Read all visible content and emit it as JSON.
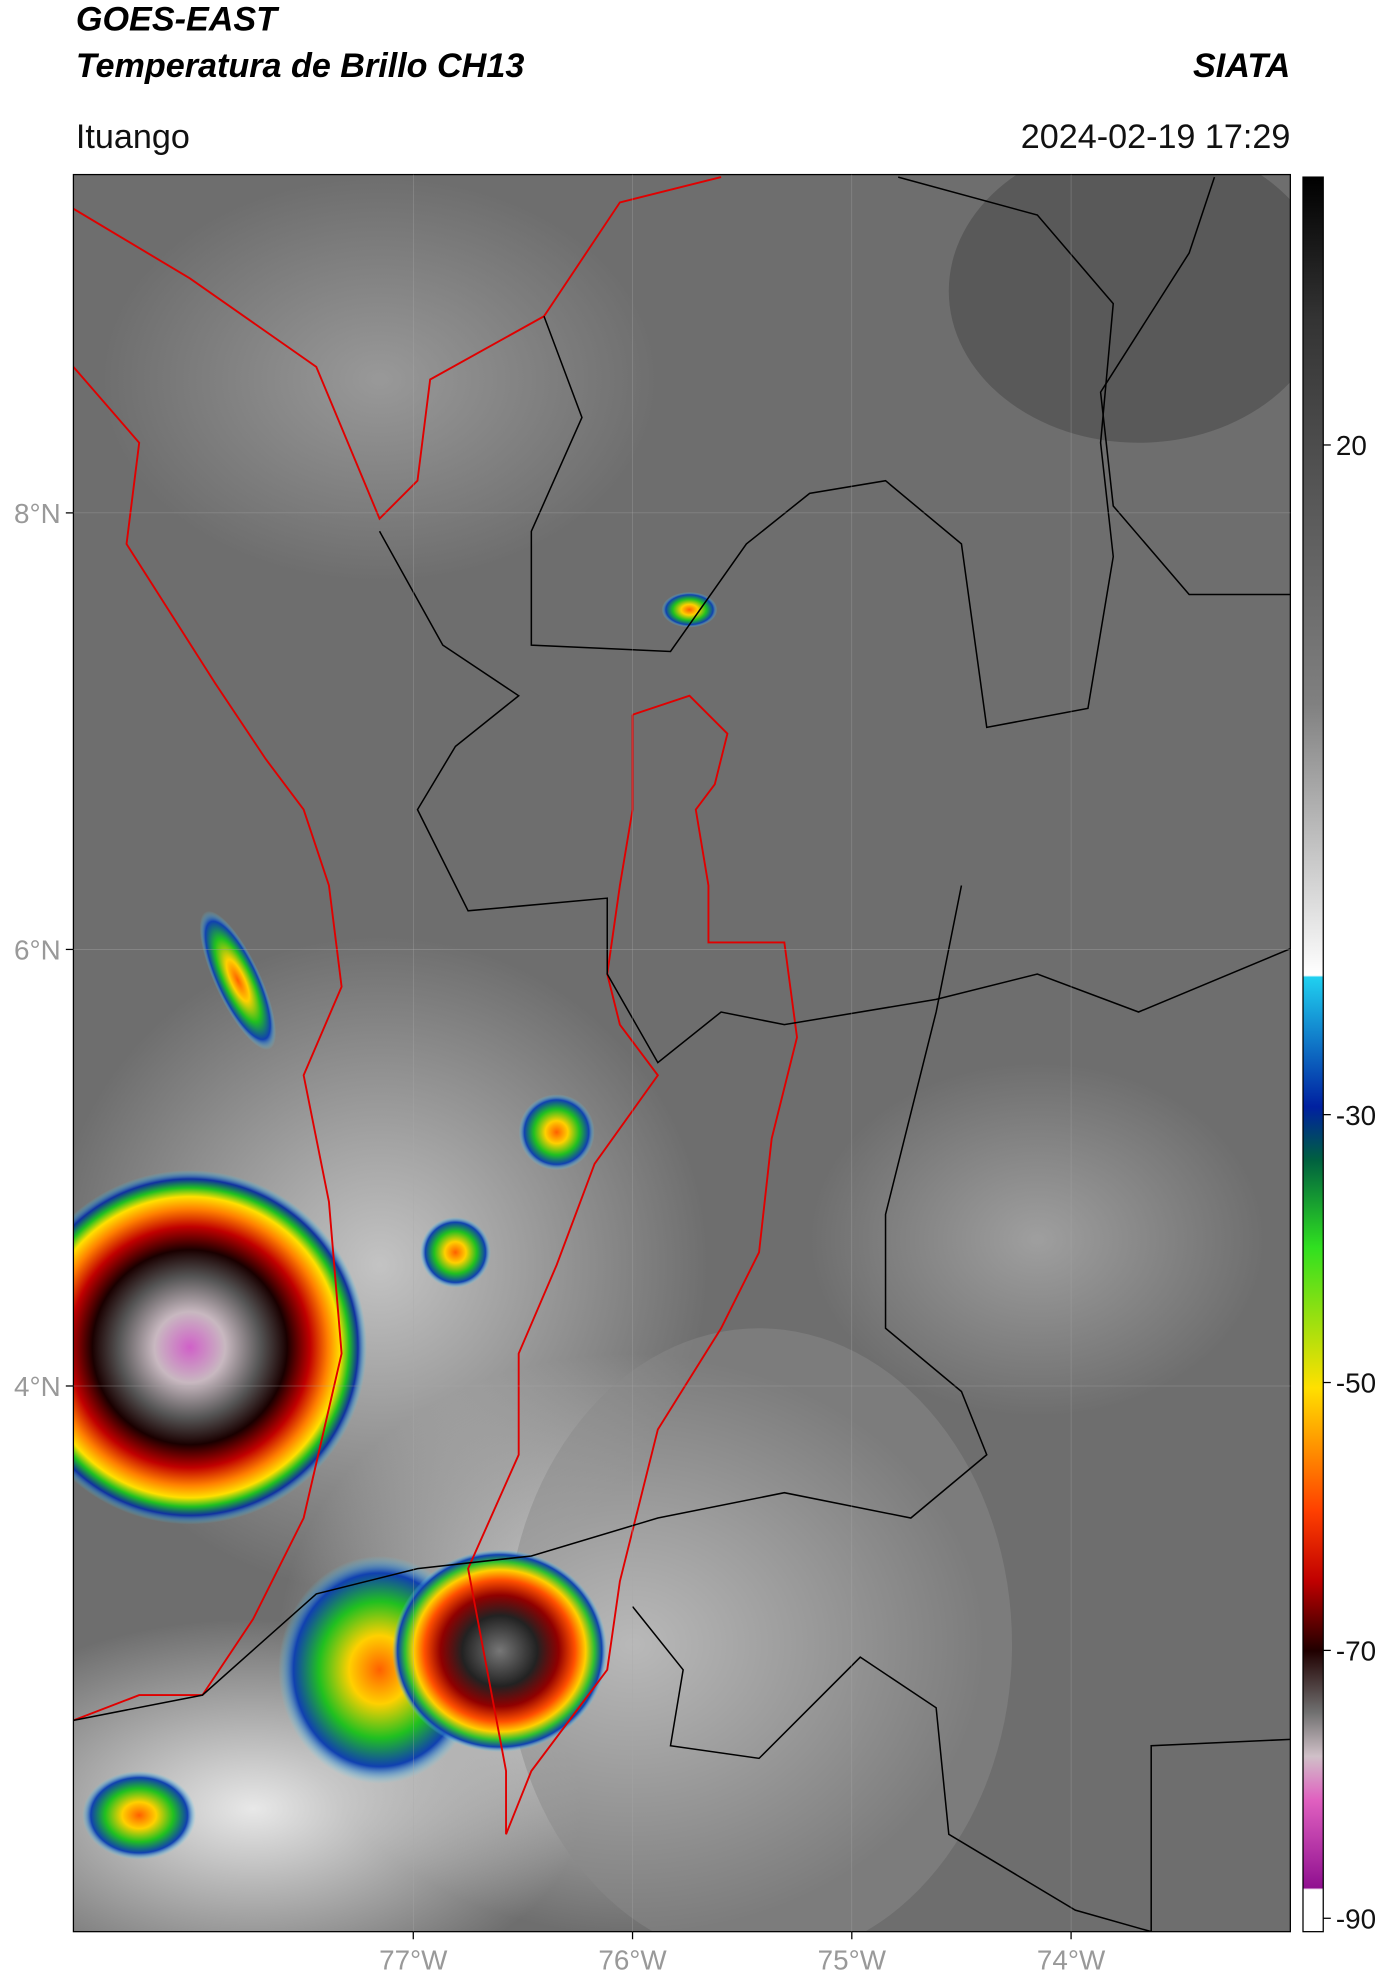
{
  "header": {
    "title": "GOES-EAST",
    "subtitle": "Temperatura de Brillo CH13",
    "source": "SIATA",
    "location": "Ituango",
    "datetime": "2024-02-19 17:29"
  },
  "map": {
    "xlim": [
      -78.55,
      -73.0
    ],
    "ylim": [
      1.5,
      9.55
    ],
    "xticks": [
      {
        "value": -77,
        "label": "77°W"
      },
      {
        "value": -76,
        "label": "76°W"
      },
      {
        "value": -75,
        "label": "75°W"
      },
      {
        "value": -74,
        "label": "74°W"
      }
    ],
    "yticks": [
      {
        "value": 8,
        "label": "8°N"
      },
      {
        "value": 6,
        "label": "6°N"
      },
      {
        "value": 4,
        "label": "4°N"
      }
    ],
    "grid": true
  },
  "colorbar": {
    "lim": [
      -91,
      40
    ],
    "ticks": [
      20,
      -30,
      -50,
      -70,
      -90
    ]
  }
}
